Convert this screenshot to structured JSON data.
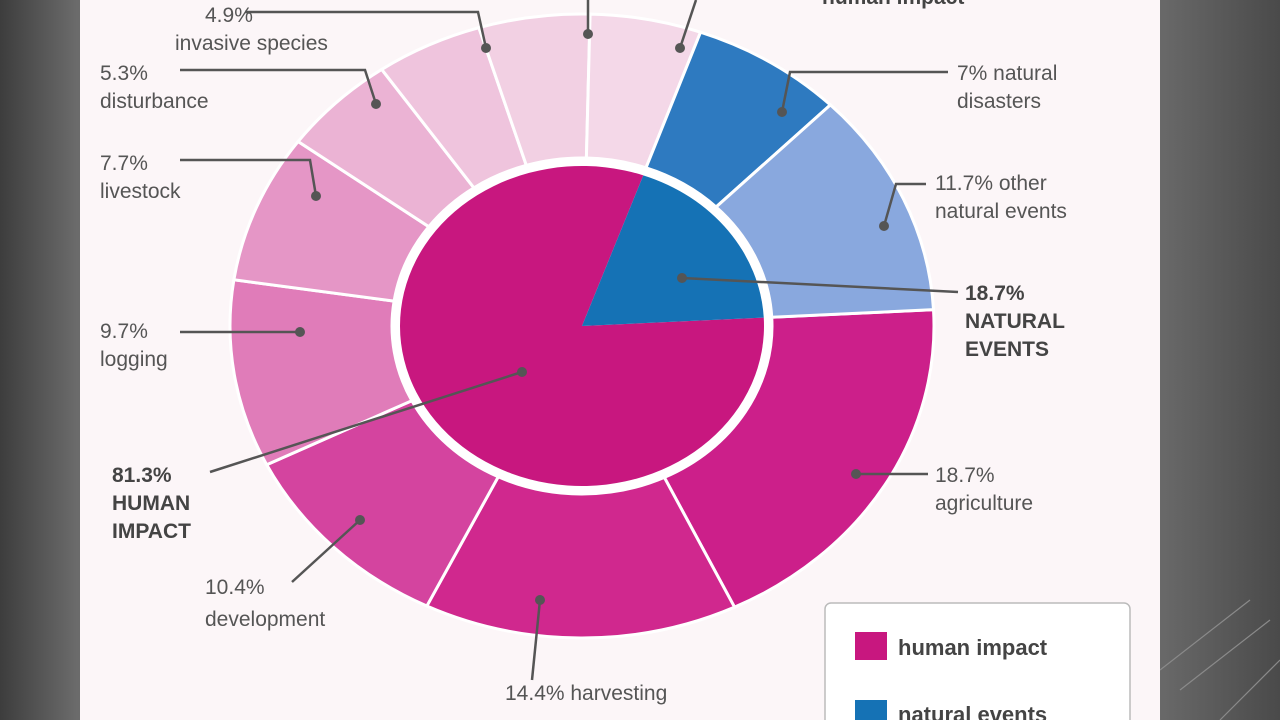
{
  "chart_data": {
    "type": "pie",
    "variant": "nested-donut",
    "inner_ring": [
      {
        "label": "HUMAN IMPACT",
        "value": 81.3,
        "value_text": "81.3%",
        "group": "human"
      },
      {
        "label": "NATURAL EVENTS",
        "value": 18.7,
        "value_text": "18.7%",
        "group": "natural"
      }
    ],
    "outer_ring": [
      {
        "label": "agriculture",
        "value": 18.7,
        "value_text": "18.7%",
        "group": "human",
        "color": "#cc1f8a"
      },
      {
        "label": "harvesting",
        "value": 14.4,
        "value_text": "14.4%",
        "group": "human",
        "color": "#d0288e"
      },
      {
        "label": "development",
        "value": 10.4,
        "value_text": "10.4%",
        "group": "human",
        "color": "#d4449f"
      },
      {
        "label": "logging",
        "value": 9.7,
        "value_text": "9.7%",
        "group": "human",
        "color": "#e07cb9"
      },
      {
        "label": "livestock",
        "value": 7.7,
        "value_text": "7.7%",
        "group": "human",
        "color": "#e596c6"
      },
      {
        "label": "disturbance",
        "value": 5.3,
        "value_text": "5.3%",
        "group": "human",
        "color": "#ebb3d4"
      },
      {
        "label": "invasive species",
        "value": 4.9,
        "value_text": "4.9%",
        "group": "human",
        "color": "#efc4dd"
      },
      {
        "label": "",
        "value": 5.1,
        "value_text": "",
        "group": "human",
        "color": "#f2d0e3"
      },
      {
        "label": "",
        "value": 5.1,
        "value_text": "",
        "group": "human",
        "color": "#f4d8e8"
      },
      {
        "label": "natural disasters",
        "value": 7.0,
        "value_text": "7%",
        "group": "natural",
        "color": "#2e7ac0"
      },
      {
        "label": "other natural events",
        "value": 11.7,
        "value_text": "11.7%",
        "group": "natural",
        "color": "#89a8de"
      }
    ],
    "colors": {
      "human": "#c8177f",
      "natural": "#1572b5"
    },
    "legend": {
      "placement": "bottom-right",
      "items": [
        {
          "label": "human impact",
          "color": "#c8177f"
        },
        {
          "label": "natural events",
          "color": "#1572b5"
        }
      ]
    },
    "top_cut_text": "human impact"
  },
  "labels": {
    "invasive": [
      "4.9%",
      "invasive species"
    ],
    "disturbance": [
      "5.3%",
      "disturbance"
    ],
    "livestock": [
      "7.7%",
      "livestock"
    ],
    "logging": [
      "9.7%",
      "logging"
    ],
    "human": [
      "81.3%",
      "HUMAN",
      "IMPACT"
    ],
    "development": [
      "10.4%",
      "development"
    ],
    "harvesting": [
      "14.4% harvesting"
    ],
    "agriculture": [
      "18.7%",
      "agriculture"
    ],
    "natural_events": [
      "18.7%",
      "NATURAL",
      "EVENTS"
    ],
    "other_natural": [
      "11.7% other",
      "natural events"
    ],
    "disasters": [
      "7% natural",
      "disasters"
    ]
  }
}
